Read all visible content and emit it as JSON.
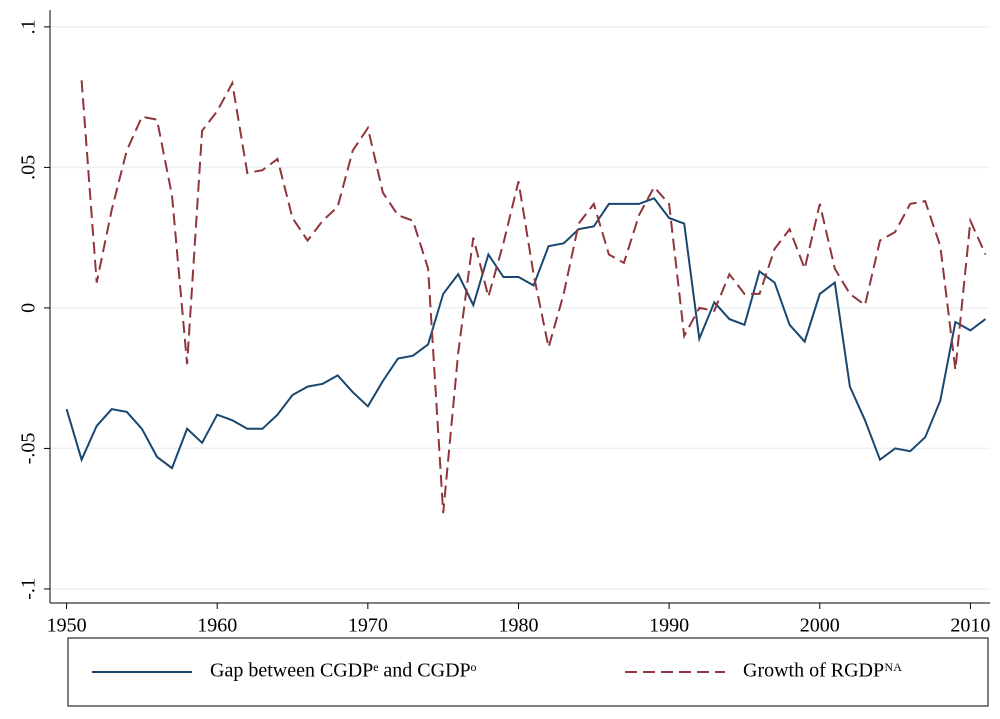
{
  "chart_data": {
    "type": "line",
    "x": [
      1950,
      1951,
      1952,
      1953,
      1954,
      1955,
      1956,
      1957,
      1958,
      1959,
      1960,
      1961,
      1962,
      1963,
      1964,
      1965,
      1966,
      1967,
      1968,
      1969,
      1970,
      1971,
      1972,
      1973,
      1974,
      1975,
      1976,
      1977,
      1978,
      1979,
      1980,
      1981,
      1982,
      1983,
      1984,
      1985,
      1986,
      1987,
      1988,
      1989,
      1990,
      1991,
      1992,
      1993,
      1994,
      1995,
      1996,
      1997,
      1998,
      1999,
      2000,
      2001,
      2002,
      2003,
      2004,
      2005,
      2006,
      2007,
      2008,
      2009,
      2010,
      2011
    ],
    "series": [
      {
        "name": "Gap between CGDPᵉ and CGDPᵒ",
        "color": "#1a476f",
        "dash": false,
        "values": [
          -0.036,
          -0.054,
          -0.042,
          -0.036,
          -0.037,
          -0.043,
          -0.053,
          -0.057,
          -0.043,
          -0.048,
          -0.038,
          -0.04,
          -0.043,
          -0.043,
          -0.038,
          -0.031,
          -0.028,
          -0.027,
          -0.024,
          -0.03,
          -0.035,
          -0.026,
          -0.018,
          -0.017,
          -0.013,
          0.005,
          0.012,
          0.001,
          0.019,
          0.011,
          0.011,
          0.008,
          0.022,
          0.023,
          0.028,
          0.029,
          0.037,
          0.037,
          0.037,
          0.039,
          0.032,
          0.03,
          -0.011,
          0.002,
          -0.004,
          -0.006,
          0.013,
          0.009,
          -0.006,
          -0.012,
          0.005,
          0.009,
          -0.028,
          -0.04,
          -0.054,
          -0.05,
          -0.051,
          -0.046,
          -0.033,
          -0.005,
          -0.008,
          -0.004
        ]
      },
      {
        "name": "Growth of RGDPᴺᴬ",
        "color": "#90353b",
        "dash": true,
        "values": [
          null,
          0.081,
          0.009,
          0.035,
          0.056,
          0.068,
          0.067,
          0.04,
          -0.02,
          0.063,
          0.07,
          0.08,
          0.048,
          0.049,
          0.053,
          0.032,
          0.024,
          0.031,
          0.036,
          0.056,
          0.064,
          0.041,
          0.033,
          0.031,
          0.014,
          -0.073,
          -0.016,
          0.025,
          0.004,
          0.023,
          0.045,
          0.012,
          -0.014,
          0.005,
          0.03,
          0.037,
          0.019,
          0.016,
          0.033,
          0.043,
          0.037,
          -0.01,
          0.0,
          -0.001,
          0.012,
          0.005,
          0.005,
          0.021,
          0.028,
          0.014,
          0.037,
          0.014,
          0.005,
          0.001,
          0.024,
          0.027,
          0.037,
          0.038,
          0.022,
          -0.022,
          0.031,
          0.019
        ]
      }
    ],
    "xlim": [
      1948.9,
      2011.3
    ],
    "xticks": [
      1950,
      1960,
      1970,
      1980,
      1990,
      2000,
      2010
    ],
    "ylim": [
      -0.105,
      0.106
    ],
    "yticks": [
      {
        "value": -0.1,
        "label": "-.1"
      },
      {
        "value": -0.05,
        "label": "-.05"
      },
      0,
      {
        "value": 0.05,
        "label": ".05"
      },
      {
        "value": 0.1,
        "label": ".1"
      }
    ],
    "grid": true
  }
}
